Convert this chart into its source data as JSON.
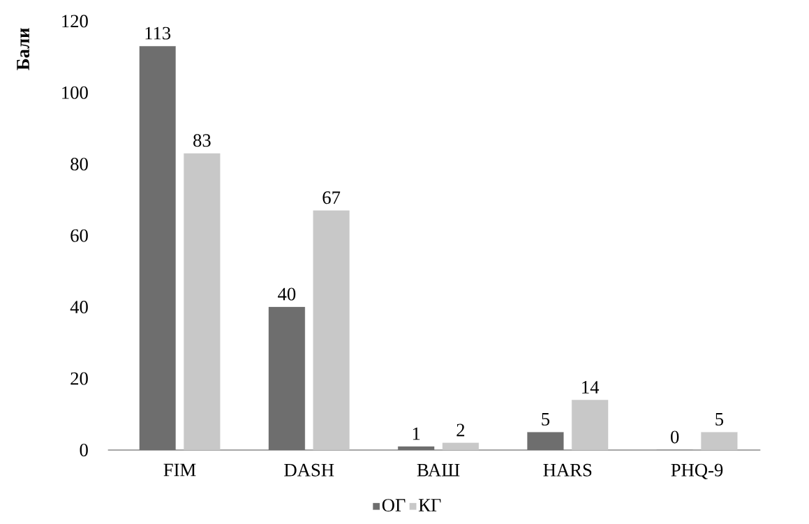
{
  "chart_data": {
    "type": "bar",
    "ylabel": "Бали",
    "categories": [
      "FIM",
      "DASH",
      "ВАШ",
      "HARS",
      "PHQ-9"
    ],
    "series": [
      {
        "name": "ОГ",
        "color": "#6e6e6e",
        "values": [
          113,
          40,
          1,
          5,
          0
        ]
      },
      {
        "name": "КГ",
        "color": "#c8c8c8",
        "values": [
          83,
          67,
          2,
          14,
          5
        ]
      }
    ],
    "ylim": [
      0,
      120
    ],
    "yticks": [
      0,
      20,
      40,
      60,
      80,
      100,
      120
    ],
    "data_labels": true,
    "legend": "bottom"
  }
}
